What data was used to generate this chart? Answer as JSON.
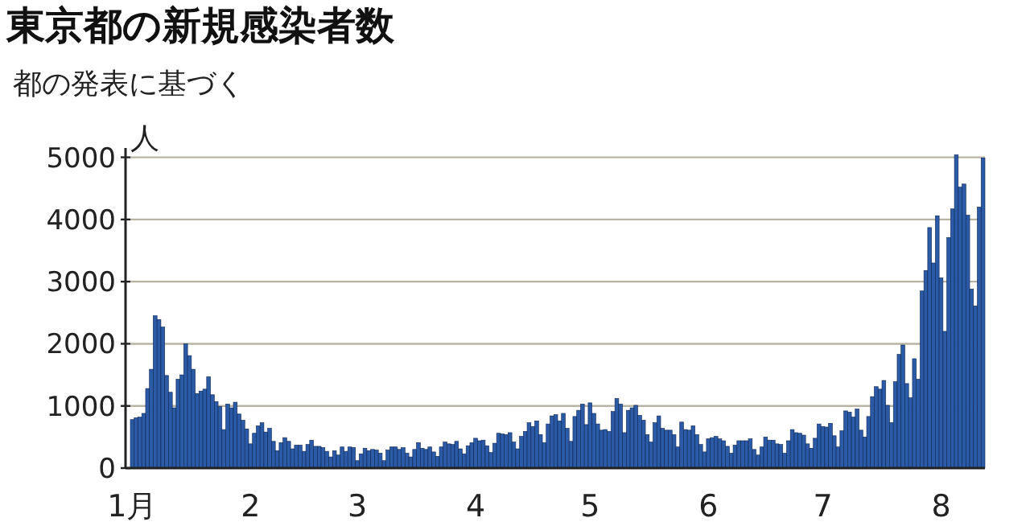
{
  "chart_data": {
    "type": "bar",
    "title": "東京都の新規感染者数",
    "subtitle": "都の発表に基づく",
    "ylabel": "人",
    "categories": [
      "1月",
      null,
      null,
      null,
      null,
      null,
      null,
      null,
      null,
      null,
      null,
      null,
      null,
      null,
      null,
      null,
      null,
      null,
      null,
      null,
      null,
      null,
      null,
      null,
      null,
      null,
      null,
      null,
      null,
      null,
      null,
      "2",
      null,
      null,
      null,
      null,
      null,
      null,
      null,
      null,
      null,
      null,
      null,
      null,
      null,
      null,
      null,
      null,
      null,
      null,
      null,
      null,
      null,
      null,
      null,
      null,
      null,
      null,
      null,
      "3",
      null,
      null,
      null,
      null,
      null,
      null,
      null,
      null,
      null,
      null,
      null,
      null,
      null,
      null,
      null,
      null,
      null,
      null,
      null,
      null,
      null,
      null,
      null,
      null,
      null,
      null,
      null,
      null,
      null,
      null,
      "4",
      null,
      null,
      null,
      null,
      null,
      null,
      null,
      null,
      null,
      null,
      null,
      null,
      null,
      null,
      null,
      null,
      null,
      null,
      null,
      null,
      null,
      null,
      null,
      null,
      null,
      null,
      null,
      null,
      null,
      "5",
      null,
      null,
      null,
      null,
      null,
      null,
      null,
      null,
      null,
      null,
      null,
      null,
      null,
      null,
      null,
      null,
      null,
      null,
      null,
      null,
      null,
      null,
      null,
      null,
      null,
      null,
      null,
      null,
      null,
      null,
      "6",
      null,
      null,
      null,
      null,
      null,
      null,
      null,
      null,
      null,
      null,
      null,
      null,
      null,
      null,
      null,
      null,
      null,
      null,
      null,
      null,
      null,
      null,
      null,
      null,
      null,
      null,
      null,
      null,
      null,
      "7",
      null,
      null,
      null,
      null,
      null,
      null,
      null,
      null,
      null,
      null,
      null,
      null,
      null,
      null,
      null,
      null,
      null,
      null,
      null,
      null,
      null,
      null,
      null,
      null,
      null,
      null,
      null,
      null,
      null,
      null,
      "8",
      null,
      null,
      null,
      null,
      null,
      null,
      null,
      null,
      null,
      null,
      null
    ],
    "values": [
      780,
      810,
      820,
      880,
      1280,
      1590,
      2450,
      2390,
      2270,
      1490,
      1220,
      970,
      1430,
      1500,
      2000,
      1810,
      1590,
      1200,
      1240,
      1270,
      1470,
      1180,
      1070,
      990,
      620,
      1030,
      970,
      1060,
      870,
      770,
      630,
      390,
      560,
      680,
      730,
      580,
      640,
      430,
      280,
      410,
      490,
      430,
      310,
      370,
      370,
      270,
      380,
      450,
      350,
      350,
      330,
      270,
      180,
      280,
      210,
      340,
      270,
      340,
      330,
      120,
      230,
      320,
      280,
      300,
      290,
      240,
      120,
      290,
      340,
      340,
      300,
      330,
      240,
      180,
      300,
      410,
      320,
      300,
      340,
      260,
      190,
      340,
      420,
      390,
      380,
      430,
      310,
      230,
      360,
      410,
      480,
      440,
      450,
      360,
      250,
      400,
      560,
      550,
      540,
      570,
      420,
      310,
      510,
      590,
      730,
      670,
      760,
      540,
      410,
      710,
      840,
      860,
      760,
      880,
      640,
      430,
      830,
      930,
      1030,
      700,
      1050,
      880,
      710,
      610,
      620,
      590,
      910,
      1120,
      1030,
      570,
      930,
      970,
      1010,
      850,
      770,
      540,
      420,
      730,
      840,
      640,
      610,
      610,
      540,
      340,
      740,
      620,
      610,
      680,
      540,
      380,
      260,
      470,
      490,
      510,
      470,
      440,
      350,
      240,
      370,
      440,
      440,
      440,
      470,
      300,
      210,
      340,
      500,
      450,
      450,
      390,
      380,
      240,
      440,
      620,
      570,
      560,
      530,
      390,
      320,
      480,
      710,
      670,
      660,
      720,
      520,
      340,
      600,
      920,
      900,
      820,
      950,
      610,
      500,
      830,
      1150,
      1310,
      1270,
      1410,
      1010,
      730,
      1390,
      1830,
      1980,
      1360,
      1130,
      1760,
      1430,
      2850,
      3180,
      3870,
      3300,
      4060,
      3060,
      2200,
      3710,
      4170,
      5040,
      4520,
      4570,
      4070,
      2880,
      2610,
      4200,
      4990
    ],
    "color": "#2b5aa6",
    "ylim": [
      0,
      5150
    ],
    "yticks": [
      0,
      1000,
      2000,
      3000,
      4000,
      5000
    ],
    "grid": "y"
  }
}
